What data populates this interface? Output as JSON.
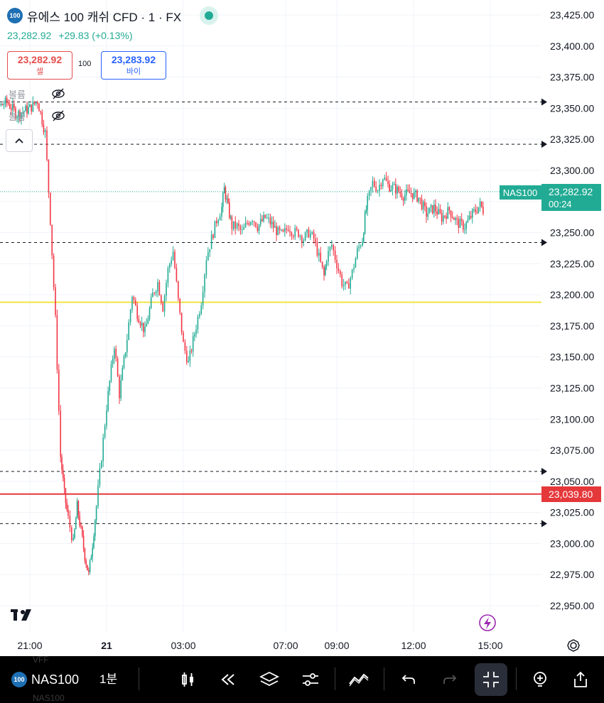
{
  "header": {
    "symbol_badge": "100",
    "title": "유에스 100 캐쉬 CFD · 1 · FX",
    "last_price": "23,282.92",
    "change": "+29.83 (+0.13%)"
  },
  "order_panel": {
    "sell_price": "23,282.92",
    "sell_label": "셀",
    "spread": "100",
    "buy_price": "23,283.92",
    "buy_label": "바이"
  },
  "indicators": [
    {
      "label": "볼륨"
    },
    {
      "label": "볼륨"
    }
  ],
  "price_tag": {
    "symbol": "NAS100",
    "price": "23,282.92",
    "countdown": "00:24"
  },
  "alert_tag": {
    "price": "23,039.80"
  },
  "bottom_bar": {
    "symbol_badge": "100",
    "symbol": "NAS100",
    "interval": "1분",
    "ghost_1": "VFF",
    "ghost_2": "NAS100"
  },
  "colors": {
    "up": "#22ab94",
    "down": "#f23645",
    "horizontal_yellow": "#f0e442",
    "horizontal_red": "#e5383b",
    "dashed_lines": "#131722"
  },
  "chart_data": {
    "type": "candlestick",
    "symbol": "NAS100",
    "interval": "1",
    "ylim": [
      22940,
      23435
    ],
    "y_ticks": [
      23425,
      23400,
      23375,
      23350,
      23325,
      23300,
      23275,
      23250,
      23225,
      23200,
      23175,
      23150,
      23125,
      23100,
      23075,
      23050,
      23025,
      23000,
      22975,
      22950
    ],
    "y_tick_labels": [
      "23,425.00",
      "23,400.00",
      "23,375.00",
      "23,350.00",
      "23,325.00",
      "23,300.00",
      "23,275.00",
      "23,250.00",
      "23,225.00",
      "23,200.00",
      "23,175.00",
      "23,150.00",
      "23,125.00",
      "23,100.00",
      "23,075.00",
      "23,050.00",
      "23,025.00",
      "23,000.00",
      "22,975.00",
      "22,950.00"
    ],
    "x_tick_labels": [
      "21:00",
      "21",
      "03:00",
      "07:00",
      "09:00",
      "12:00",
      "15:00"
    ],
    "x_tick_hours": [
      21,
      24,
      27,
      31,
      33,
      36,
      39
    ],
    "price_path": [
      [
        18.9,
        23370
      ],
      [
        19.3,
        23360
      ],
      [
        19.7,
        23350
      ],
      [
        20.1,
        23355
      ],
      [
        20.5,
        23345
      ],
      [
        21.0,
        23350
      ],
      [
        21.3,
        23356
      ],
      [
        21.6,
        23330
      ],
      [
        21.8,
        23260
      ],
      [
        22.0,
        23180
      ],
      [
        22.2,
        23070
      ],
      [
        22.35,
        23040
      ],
      [
        22.5,
        23020
      ],
      [
        22.7,
        23000
      ],
      [
        22.85,
        23030
      ],
      [
        23.0,
        23010
      ],
      [
        23.15,
        22990
      ],
      [
        23.3,
        22975
      ],
      [
        23.45,
        23000
      ],
      [
        23.6,
        23030
      ],
      [
        23.8,
        23070
      ],
      [
        24.0,
        23110
      ],
      [
        24.3,
        23160
      ],
      [
        24.5,
        23120
      ],
      [
        24.8,
        23165
      ],
      [
        25.0,
        23200
      ],
      [
        25.2,
        23185
      ],
      [
        25.5,
        23170
      ],
      [
        25.8,
        23200
      ],
      [
        26.0,
        23210
      ],
      [
        26.2,
        23190
      ],
      [
        26.4,
        23220
      ],
      [
        26.6,
        23235
      ],
      [
        26.8,
        23195
      ],
      [
        27.0,
        23160
      ],
      [
        27.2,
        23145
      ],
      [
        27.5,
        23175
      ],
      [
        27.7,
        23195
      ],
      [
        27.9,
        23230
      ],
      [
        28.1,
        23245
      ],
      [
        28.3,
        23260
      ],
      [
        28.5,
        23270
      ],
      [
        28.6,
        23285
      ],
      [
        28.75,
        23270
      ],
      [
        28.9,
        23255
      ],
      [
        29.1,
        23255
      ],
      [
        29.3,
        23250
      ],
      [
        29.5,
        23258
      ],
      [
        29.7,
        23262
      ],
      [
        29.9,
        23255
      ],
      [
        30.2,
        23262
      ],
      [
        30.4,
        23258
      ],
      [
        30.7,
        23250
      ],
      [
        30.9,
        23248
      ],
      [
        31.1,
        23255
      ],
      [
        31.3,
        23250
      ],
      [
        31.5,
        23250
      ],
      [
        31.7,
        23245
      ],
      [
        31.9,
        23250
      ],
      [
        32.1,
        23245
      ],
      [
        32.3,
        23230
      ],
      [
        32.5,
        23215
      ],
      [
        32.6,
        23230
      ],
      [
        32.8,
        23240
      ],
      [
        33.0,
        23225
      ],
      [
        33.2,
        23210
      ],
      [
        33.4,
        23205
      ],
      [
        33.6,
        23218
      ],
      [
        33.8,
        23235
      ],
      [
        34.0,
        23245
      ],
      [
        34.1,
        23262
      ],
      [
        34.2,
        23275
      ],
      [
        34.4,
        23290
      ],
      [
        34.6,
        23285
      ],
      [
        34.8,
        23295
      ],
      [
        35.0,
        23288
      ],
      [
        35.3,
        23285
      ],
      [
        35.6,
        23280
      ],
      [
        35.9,
        23282
      ],
      [
        36.2,
        23278
      ],
      [
        36.5,
        23265
      ],
      [
        36.8,
        23270
      ],
      [
        37.1,
        23262
      ],
      [
        37.4,
        23268
      ],
      [
        37.7,
        23258
      ],
      [
        38.0,
        23255
      ],
      [
        38.3,
        23265
      ],
      [
        38.6,
        23272
      ],
      [
        38.9,
        23262
      ],
      [
        39.1,
        23258
      ],
      [
        39.3,
        23265
      ],
      [
        39.6,
        23272
      ],
      [
        39.8,
        23285
      ],
      [
        40.0,
        23295
      ],
      [
        40.2,
        23292
      ],
      [
        40.5,
        23285
      ],
      [
        40.8,
        23282.92
      ]
    ],
    "horizontal_lines": [
      {
        "price": 23355,
        "style": "dashed"
      },
      {
        "price": 23321,
        "style": "dashed"
      },
      {
        "price": 23242,
        "style": "dashed"
      },
      {
        "price": 23194,
        "style": "solid",
        "color": "yellow"
      },
      {
        "price": 23058,
        "style": "dashed"
      },
      {
        "price": 23039.8,
        "style": "solid",
        "color": "red"
      },
      {
        "price": 23016,
        "style": "dashed"
      }
    ],
    "last_price": 23282.92,
    "grid": true
  }
}
